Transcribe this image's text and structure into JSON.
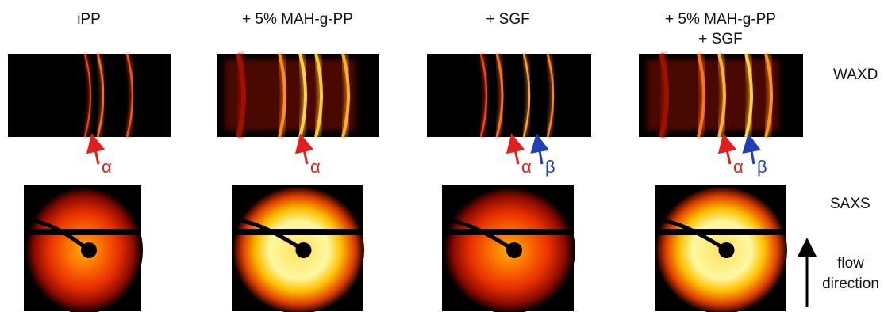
{
  "columns": [
    {
      "title": [
        "iPP"
      ],
      "markers": [
        "α"
      ]
    },
    {
      "title": [
        "+ 5% MAH-g-PP"
      ],
      "markers": [
        "α"
      ]
    },
    {
      "title": [
        "+ SGF"
      ],
      "markers": [
        "α",
        "β"
      ]
    },
    {
      "title": [
        "+ 5% MAH-g-PP",
        "+ SGF"
      ],
      "markers": [
        "α",
        "β"
      ]
    }
  ],
  "rows": [
    "WAXD",
    "SAXS"
  ],
  "flow_label": [
    "flow",
    "direction"
  ]
}
